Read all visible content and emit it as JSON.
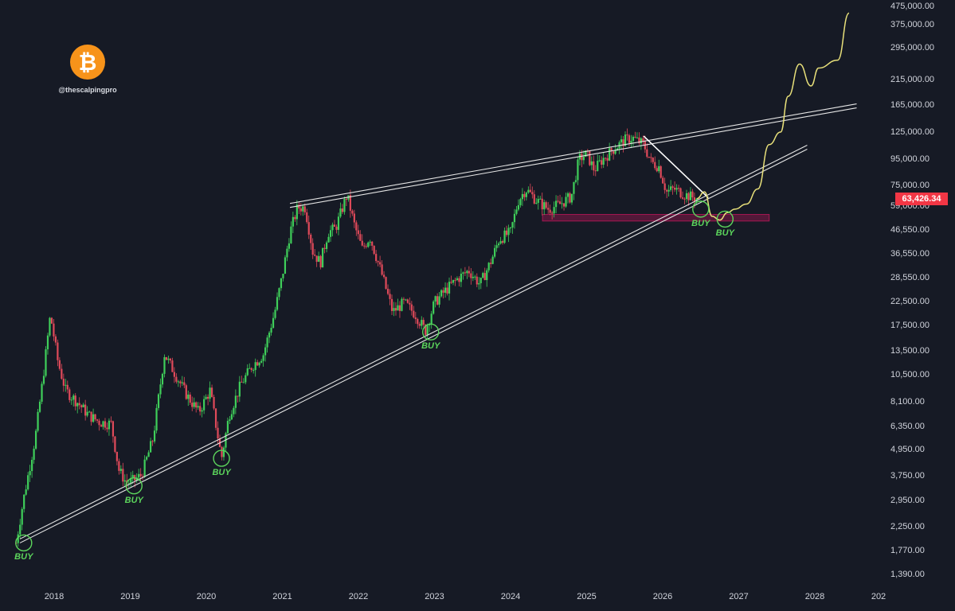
{
  "watermark": "@thescalpingpro",
  "logo_icon": "bitcoin-icon",
  "current_price": "63,426.34",
  "price_axis_labels": [
    "475,000.00",
    "375,000.00",
    "295,000.00",
    "215,000.00",
    "165,000.00",
    "125,000.00",
    "95,000.00",
    "75,000.00",
    "59,000.00",
    "46,550.00",
    "36,550.00",
    "28,550.00",
    "22,500.00",
    "17,500.00",
    "13,500.00",
    "10,500.00",
    "8,100.00",
    "6,350.00",
    "4,950.00",
    "3,750.00",
    "2,950.00",
    "2,250.00",
    "1,770.00",
    "1,390.00"
  ],
  "year_labels": [
    "2018",
    "2019",
    "2020",
    "2021",
    "2022",
    "2023",
    "2024",
    "2025",
    "2026",
    "2027",
    "2028",
    "202"
  ],
  "buy_label": "BUY",
  "colors": {
    "background": "#161a25",
    "up_candle": "#26a69a",
    "down_candle": "#ef5350",
    "projection": "#e8e07a",
    "trendline": "#ffffff",
    "buy_circle": "#5cd65c",
    "support_zone": "#c2185b"
  },
  "chart_data": {
    "type": "candlestick",
    "scale": "log",
    "ylim": [
      1200,
      475000
    ],
    "xlim": [
      "2017-07",
      "2028-12"
    ],
    "series": [
      {
        "points": [
          [
            "2017.50",
            1900
          ],
          [
            "2017.60",
            3000
          ],
          [
            "2017.75",
            5500
          ],
          [
            "2017.85",
            10000
          ],
          [
            "2017.95",
            19500
          ],
          [
            "2018.05",
            12000
          ],
          [
            "2018.15",
            9000
          ],
          [
            "2018.30",
            8000
          ],
          [
            "2018.45",
            7000
          ],
          [
            "2018.60",
            6500
          ],
          [
            "2018.75",
            6400
          ],
          [
            "2018.85",
            4000
          ],
          [
            "2018.95",
            3500
          ],
          [
            "2019.05",
            3600
          ],
          [
            "2019.15",
            3800
          ],
          [
            "2019.30",
            5500
          ],
          [
            "2019.45",
            13000
          ],
          [
            "2019.60",
            10500
          ],
          [
            "2019.75",
            8500
          ],
          [
            "2019.90",
            7200
          ],
          [
            "2020.05",
            9000
          ],
          [
            "2020.20",
            4500
          ],
          [
            "2020.30",
            7000
          ],
          [
            "2020.45",
            9500
          ],
          [
            "2020.60",
            11500
          ],
          [
            "2020.75",
            13000
          ],
          [
            "2020.90",
            20000
          ],
          [
            "2021.00",
            29000
          ],
          [
            "2021.10",
            45000
          ],
          [
            "2021.20",
            58000
          ],
          [
            "2021.30",
            58000
          ],
          [
            "2021.40",
            37000
          ],
          [
            "2021.50",
            33000
          ],
          [
            "2021.60",
            45000
          ],
          [
            "2021.70",
            47000
          ],
          [
            "2021.85",
            66000
          ],
          [
            "2021.95",
            48000
          ],
          [
            "2022.05",
            38000
          ],
          [
            "2022.15",
            43000
          ],
          [
            "2022.30",
            30000
          ],
          [
            "2022.45",
            20000
          ],
          [
            "2022.60",
            22000
          ],
          [
            "2022.75",
            19500
          ],
          [
            "2022.88",
            16500
          ],
          [
            "2023.00",
            22000
          ],
          [
            "2023.15",
            25000
          ],
          [
            "2023.30",
            28000
          ],
          [
            "2023.45",
            30500
          ],
          [
            "2023.60",
            26500
          ],
          [
            "2023.75",
            34000
          ],
          [
            "2023.85",
            42000
          ],
          [
            "2024.00",
            45000
          ],
          [
            "2024.10",
            62000
          ],
          [
            "2024.20",
            70000
          ],
          [
            "2024.35",
            62000
          ],
          [
            "2024.50",
            57000
          ],
          [
            "2024.65",
            60000
          ],
          [
            "2024.80",
            65000
          ],
          [
            "2024.90",
            95000
          ],
          [
            "2025.00",
            100000
          ],
          [
            "2025.10",
            85000
          ],
          [
            "2025.20",
            94000
          ],
          [
            "2025.35",
            105000
          ],
          [
            "2025.50",
            115000
          ],
          [
            "2025.60",
            118000
          ],
          [
            "2025.75",
            110000
          ],
          [
            "2025.85",
            92000
          ],
          [
            "2025.95",
            88000
          ],
          [
            "2026.05",
            68000
          ],
          [
            "2026.15",
            70000
          ],
          [
            "2026.30",
            66000
          ],
          [
            "2026.45",
            63426
          ]
        ]
      }
    ],
    "projection": [
      [
        "2026.45",
        63426
      ],
      [
        "2026.55",
        68000
      ],
      [
        "2026.65",
        53000
      ],
      [
        "2026.75",
        51000
      ],
      [
        "2026.85",
        55000
      ],
      [
        "2026.95",
        57000
      ],
      [
        "2027.10",
        60000
      ],
      [
        "2027.25",
        70000
      ],
      [
        "2027.40",
        110000
      ],
      [
        "2027.55",
        125000
      ],
      [
        "2027.65",
        180000
      ],
      [
        "2027.80",
        250000
      ],
      [
        "2027.95",
        200000
      ],
      [
        "2028.05",
        240000
      ],
      [
        "2028.30",
        260000
      ],
      [
        "2028.45",
        420000
      ]
    ],
    "trendlines": [
      {
        "name": "rising-support",
        "from": [
          "2017.55",
          1900
        ],
        "to": [
          "2027.90",
          105000
        ]
      },
      {
        "name": "upper-resistance",
        "from": [
          "2021.10",
          58000
        ],
        "to": [
          "2028.55",
          160000
        ]
      },
      {
        "name": "down-trend",
        "from": [
          "2025.75",
          120000
        ],
        "to": [
          "2026.60",
          64000
        ]
      }
    ],
    "support_zone": [
      50500,
      54000
    ],
    "buy_markers": [
      {
        "x": "2017.60",
        "price": 1900
      },
      {
        "x": "2019.05",
        "price": 3400
      },
      {
        "x": "2020.20",
        "price": 4500
      },
      {
        "x": "2022.95",
        "price": 16300
      },
      {
        "x": "2026.50",
        "price": 57000
      },
      {
        "x": "2026.82",
        "price": 51500
      }
    ]
  }
}
